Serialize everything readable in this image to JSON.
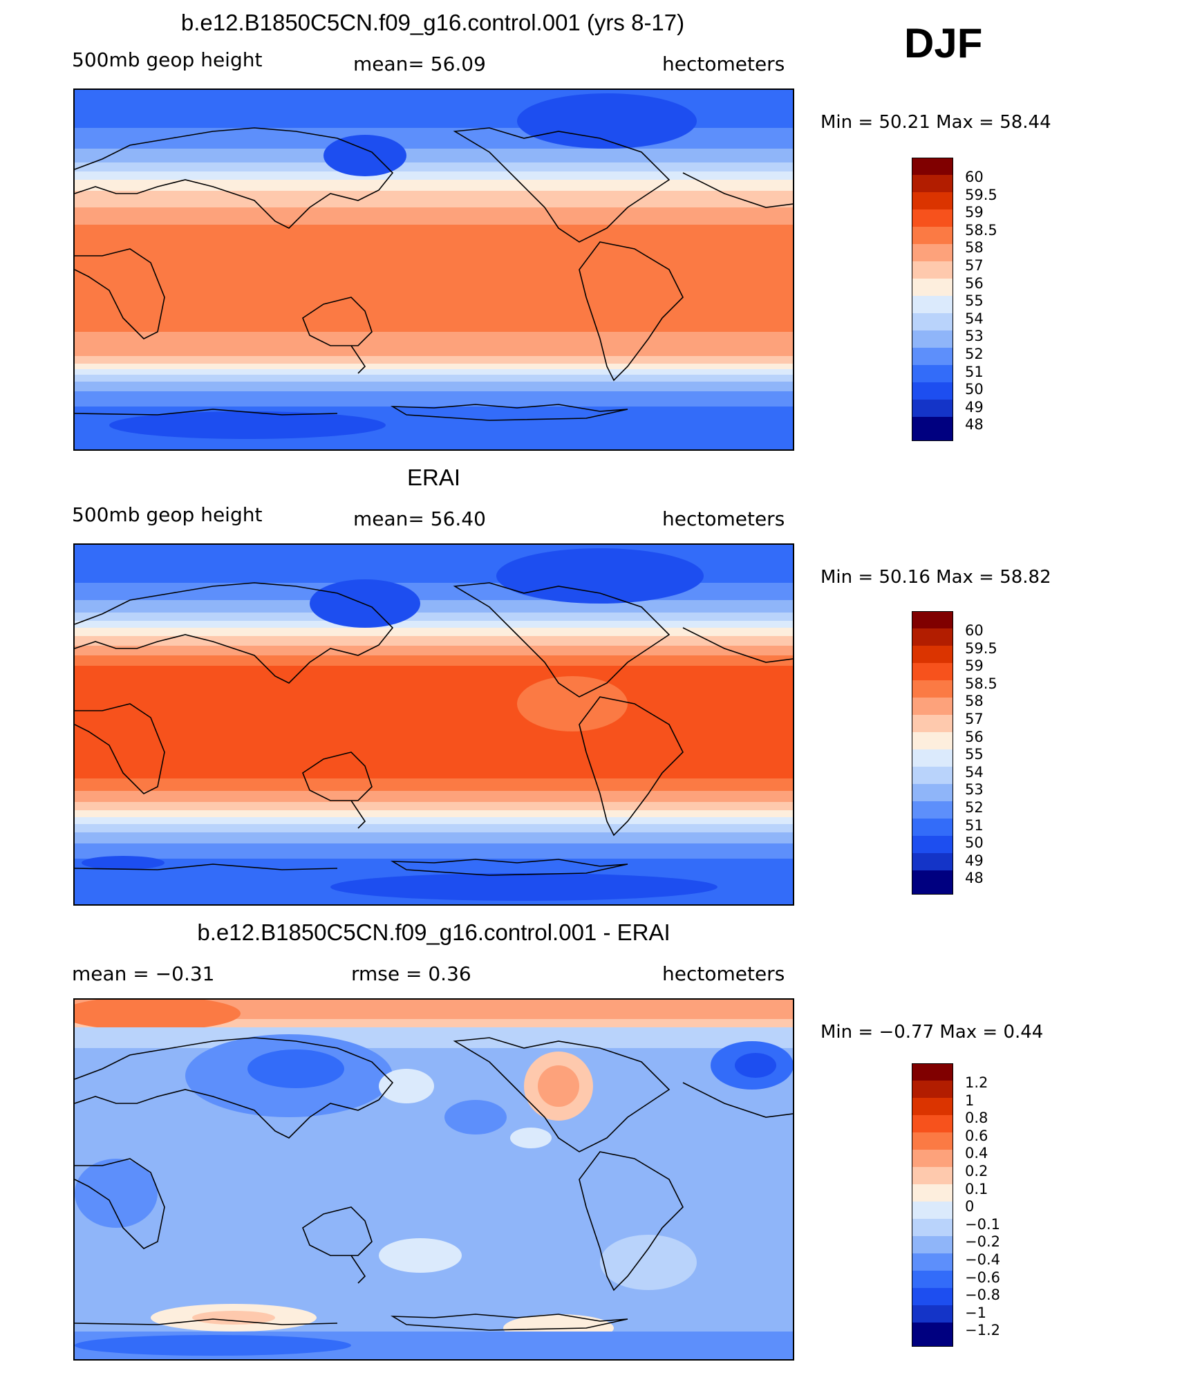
{
  "page": {
    "season": "DJF",
    "colors": {
      "abs_scale": [
        "#800000",
        "#b21d00",
        "#db3400",
        "#f7521c",
        "#fb7a44",
        "#fda27b",
        "#fec9ad",
        "#fdeedd",
        "#dbeafc",
        "#b9d3fb",
        "#8fb5f9",
        "#5d8ffb",
        "#336cf9",
        "#1d4ef0",
        "#1434c8",
        "#0c1d99",
        "#000080"
      ],
      "diff_scale": [
        "#800000",
        "#b21d00",
        "#db3400",
        "#f7521c",
        "#fb7a44",
        "#fda27b",
        "#fec9ad",
        "#fdeedd",
        "#dbeafc",
        "#b9d3fb",
        "#8fb5f9",
        "#5d8ffb",
        "#336cf9",
        "#1d4ef0",
        "#1434c8",
        "#0c1d99",
        "#000080"
      ]
    }
  },
  "chart_data": [
    {
      "type": "heatmap",
      "title": "b.e12.B1850C5CN.f09_g16.control.001 (yrs 8-17)",
      "left_label": "500mb  geop  height",
      "mean_text": "mean=   56.09",
      "units": "hectometers",
      "minmax_text": "Min  =     50.21  Max  =     58.44",
      "min": 50.21,
      "max": 58.44,
      "mean": 56.09,
      "legend_labels": [
        "60",
        "59.5",
        "59",
        "58.5",
        "58",
        "57",
        "56",
        "55",
        "54",
        "53",
        "52",
        "51",
        "50",
        "49",
        "48"
      ]
    },
    {
      "type": "heatmap",
      "title": "ERAI",
      "left_label": "500mb  geop  height",
      "mean_text": "mean=   56.40",
      "units": "hectometers",
      "minmax_text": "Min  =     50.16  Max  =     58.82",
      "min": 50.16,
      "max": 58.82,
      "mean": 56.4,
      "legend_labels": [
        "60",
        "59.5",
        "59",
        "58.5",
        "58",
        "57",
        "56",
        "55",
        "54",
        "53",
        "52",
        "51",
        "50",
        "49",
        "48"
      ]
    },
    {
      "type": "heatmap",
      "title": "b.e12.B1850C5CN.f09_g16.control.001 - ERAI",
      "left_label": "mean  =    −0.31",
      "mean_text": "rmse  =      0.36",
      "units": "hectometers",
      "minmax_text": "Min  =    −0.77  Max  =      0.44",
      "min": -0.77,
      "max": 0.44,
      "mean": -0.31,
      "rmse": 0.36,
      "legend_labels": [
        "1.2",
        "1",
        "0.8",
        "0.6",
        "0.4",
        "0.2",
        "0.1",
        "0",
        "−0.1",
        "−0.2",
        "−0.4",
        "−0.6",
        "−0.8",
        "−1",
        "−1.2"
      ]
    }
  ]
}
